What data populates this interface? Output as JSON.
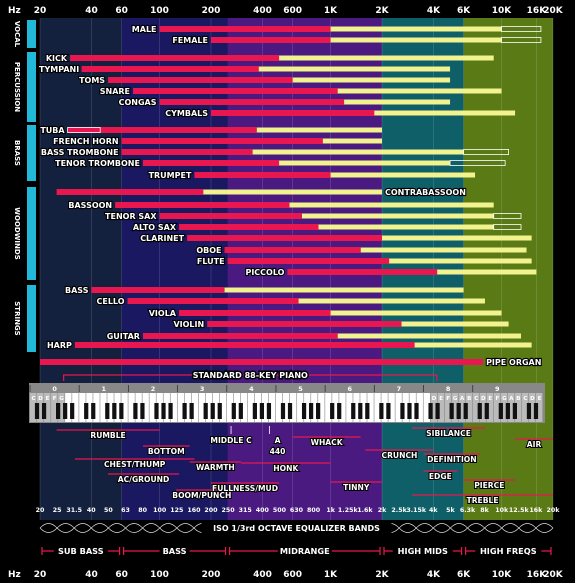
{
  "chart_data": {
    "type": "frequency-range-chart",
    "title": "",
    "axis": {
      "unit": "Hz",
      "scale": "log",
      "range": [
        20,
        20000
      ],
      "ticks": [
        {
          "value": 20,
          "label": "20"
        },
        {
          "value": 40,
          "label": "40"
        },
        {
          "value": 60,
          "label": "60"
        },
        {
          "value": 100,
          "label": "100"
        },
        {
          "value": 200,
          "label": "200"
        },
        {
          "value": 400,
          "label": "400"
        },
        {
          "value": 600,
          "label": "600"
        },
        {
          "value": 1000,
          "label": "1K"
        },
        {
          "value": 2000,
          "label": "2K"
        },
        {
          "value": 4000,
          "label": "4K"
        },
        {
          "value": 6000,
          "label": "6K"
        },
        {
          "value": 10000,
          "label": "10K"
        },
        {
          "value": 16000,
          "label": "16K"
        },
        {
          "value": 20000,
          "label": "20K"
        }
      ]
    },
    "bands": [
      {
        "name": "SUB BASS",
        "from": 20,
        "to": 60,
        "color": "#13213f"
      },
      {
        "name": "BASS",
        "from": 60,
        "to": 250,
        "color": "#1a1860"
      },
      {
        "name": "MIDRANGE",
        "from": 250,
        "to": 2000,
        "color": "#4a1a80"
      },
      {
        "name": "HIGH MIDS",
        "from": 2000,
        "to": 6000,
        "color": "#0f5f68"
      },
      {
        "name": "HIGH FREQS",
        "from": 6000,
        "to": 20000,
        "color": "#5a7a16"
      }
    ],
    "legend": {
      "fundamentals_color": "#e8174f",
      "harmonics_color": "#f2f28e"
    },
    "groups": [
      {
        "name": "VOCAL",
        "instruments": [
          {
            "name": "MALE",
            "fund": [
              100,
              1000
            ],
            "harm": [
              1000,
              10000
            ],
            "ext": [
              10000,
              17000
            ]
          },
          {
            "name": "FEMALE",
            "fund": [
              200,
              1000
            ],
            "harm": [
              1000,
              10000
            ],
            "ext": [
              10000,
              17000
            ]
          }
        ]
      },
      {
        "name": "PERCUSSION",
        "instruments": [
          {
            "name": "KICK",
            "fund": [
              30,
              500
            ],
            "harm": [
              500,
              9000
            ]
          },
          {
            "name": "TYMPANI",
            "fund": [
              35,
              380
            ],
            "harm": [
              380,
              5000
            ]
          },
          {
            "name": "TOMS",
            "fund": [
              50,
              600
            ],
            "harm": [
              600,
              5000
            ]
          },
          {
            "name": "SNARE",
            "fund": [
              70,
              1100
            ],
            "harm": [
              1100,
              10000
            ]
          },
          {
            "name": "CONGAS",
            "fund": [
              100,
              1200
            ],
            "harm": [
              1200,
              5000
            ]
          },
          {
            "name": "CYMBALS",
            "fund": [
              200,
              1800
            ],
            "harm": [
              1800,
              12000
            ]
          }
        ]
      },
      {
        "name": "BRASS",
        "instruments": [
          {
            "name": "TUBA",
            "fund": [
              29,
              370
            ],
            "harm": [
              370,
              2000
            ],
            "ext": [
              29,
              45
            ]
          },
          {
            "name": "FRENCH HORN",
            "fund": [
              60,
              900
            ],
            "harm": [
              900,
              2000
            ]
          },
          {
            "name": "BASS TROMBONE",
            "fund": [
              60,
              350
            ],
            "harm": [
              350,
              6000
            ],
            "ext": [
              6000,
              11000
            ]
          },
          {
            "name": "TENOR TROMBONE",
            "fund": [
              80,
              500
            ],
            "harm": [
              500,
              5000
            ],
            "ext": [
              5000,
              10500
            ]
          },
          {
            "name": "TRUMPET",
            "fund": [
              160,
              1000
            ],
            "harm": [
              1000,
              7000
            ]
          }
        ]
      },
      {
        "name": "WOODWINDS",
        "instruments": [
          {
            "name": "CONTRABASSOON",
            "fund": [
              25,
              180
            ],
            "harm": [
              180,
              2000
            ]
          },
          {
            "name": "BASSOON",
            "fund": [
              55,
              575
            ],
            "harm": [
              575,
              9000
            ]
          },
          {
            "name": "TENOR SAX",
            "fund": [
              100,
              680
            ],
            "harm": [
              680,
              9000
            ],
            "ext": [
              9000,
              13000
            ]
          },
          {
            "name": "ALTO SAX",
            "fund": [
              130,
              850
            ],
            "harm": [
              850,
              9000
            ],
            "ext": [
              9000,
              13000
            ]
          },
          {
            "name": "CLARINET",
            "fund": [
              145,
              2000
            ],
            "harm": [
              2000,
              15000
            ]
          },
          {
            "name": "OBOE",
            "fund": [
              240,
              1500
            ],
            "harm": [
              1500,
              14000
            ]
          },
          {
            "name": "FLUTE",
            "fund": [
              250,
              2200
            ],
            "harm": [
              2200,
              15000
            ]
          },
          {
            "name": "PICCOLO",
            "fund": [
              560,
              4200
            ],
            "harm": [
              4200,
              16000
            ]
          }
        ]
      },
      {
        "name": "STRINGS",
        "instruments": [
          {
            "name": "BASS",
            "fund": [
              40,
              240
            ],
            "harm": [
              240,
              6000
            ]
          },
          {
            "name": "CELLO",
            "fund": [
              65,
              650
            ],
            "harm": [
              650,
              8000
            ]
          },
          {
            "name": "VIOLA",
            "fund": [
              130,
              1000
            ],
            "harm": [
              1000,
              10000
            ]
          },
          {
            "name": "VIOLIN",
            "fund": [
              190,
              2600
            ],
            "harm": [
              2600,
              11000
            ]
          },
          {
            "name": "GUITAR",
            "fund": [
              80,
              1100
            ],
            "harm": [
              1100,
              13000
            ]
          }
        ]
      },
      {
        "name": "",
        "instruments": [
          {
            "name": "HARP",
            "fund": [
              32,
              3100
            ],
            "harm": [
              3100,
              15000
            ]
          },
          {
            "name": "PIPE ORGAN",
            "fund": [
              20,
              7800
            ],
            "harm": []
          }
        ]
      }
    ],
    "piano": {
      "label": "STANDARD 88-KEY PIANO",
      "range": [
        27.5,
        4186
      ],
      "octave_numbers": [
        "0",
        "1",
        "2",
        "3",
        "4",
        "5",
        "6",
        "7",
        "8",
        "9"
      ],
      "note_letters": [
        "C",
        "D",
        "E",
        "F",
        "G",
        "A",
        "B"
      ]
    },
    "descriptors": [
      {
        "name": "RUMBLE",
        "from": 25,
        "to": 100
      },
      {
        "name": "CHEST/THUMP",
        "from": 32,
        "to": 160
      },
      {
        "name": "BOTTOM",
        "from": 80,
        "to": 150
      },
      {
        "name": "AC/GROUND",
        "from": 50,
        "to": 130
      },
      {
        "name": "WARMTH",
        "from": 150,
        "to": 300
      },
      {
        "name": "BOOM/PUNCH",
        "from": 125,
        "to": 250
      },
      {
        "name": "MIDDLE C",
        "value": 262
      },
      {
        "name": "A 440",
        "value": 440
      },
      {
        "name": "FULLNESS/MUD",
        "from": 200,
        "to": 500
      },
      {
        "name": "HONK",
        "from": 300,
        "to": 1000
      },
      {
        "name": "WHACK",
        "from": 600,
        "to": 1500
      },
      {
        "name": "TINNY",
        "from": 1000,
        "to": 2000
      },
      {
        "name": "CRUNCH",
        "from": 1600,
        "to": 4000
      },
      {
        "name": "SIBILANCE",
        "from": 3000,
        "to": 8000
      },
      {
        "name": "DEFINITION",
        "from": 3500,
        "to": 7500
      },
      {
        "name": "EDGE",
        "from": 3500,
        "to": 5500
      },
      {
        "name": "PIERCE",
        "from": 6000,
        "to": 12000
      },
      {
        "name": "TREBLE",
        "from": 3000,
        "to": 20000
      },
      {
        "name": "AIR",
        "from": 12000,
        "to": 20000
      }
    ],
    "eq_bands": {
      "label": "ISO 1/3rd OCTAVE EQUALIZER BANDS",
      "values": [
        "20",
        "25",
        "31.5",
        "40",
        "50",
        "63",
        "80",
        "100",
        "125",
        "160",
        "200",
        "250",
        "315",
        "400",
        "500",
        "630",
        "800",
        "1k",
        "1.25k",
        "1.6k",
        "2k",
        "2.5k",
        "3.15k",
        "4k",
        "5k",
        "6.3k",
        "8k",
        "10k",
        "12.5k",
        "16k",
        "20k"
      ]
    }
  }
}
